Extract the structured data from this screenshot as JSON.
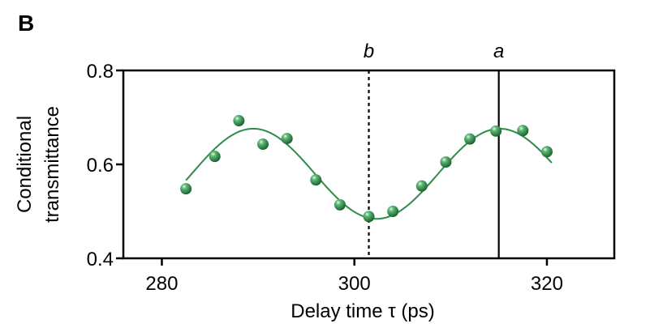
{
  "panel_label": "B",
  "chart_data": {
    "type": "scatter",
    "xlabel": "Delay time τ (ps)",
    "ylabel_lines": [
      "Conditional",
      "transmittance"
    ],
    "xlim": [
      276,
      327
    ],
    "ylim": [
      0.4,
      0.8
    ],
    "x_ticks": [
      280,
      300,
      320
    ],
    "y_ticks": [
      0.4,
      0.6,
      0.8
    ],
    "y_tick_labels": [
      "0.4",
      "0.6",
      "0.8"
    ],
    "grid": false,
    "series": [
      {
        "kind": "points",
        "color": "#2e8b4a",
        "x": [
          282.5,
          285.5,
          288,
          290.5,
          293,
          296,
          298.5,
          301.5,
          304,
          307,
          309.5,
          312,
          314.7,
          317.5,
          320
        ],
        "y": [
          0.548,
          0.617,
          0.693,
          0.643,
          0.655,
          0.567,
          0.514,
          0.489,
          0.5,
          0.554,
          0.605,
          0.654,
          0.671,
          0.672,
          0.627
        ]
      },
      {
        "kind": "fit",
        "color": "#2e8b4a",
        "function": "sine",
        "offset": 0.58,
        "amplitude": 0.096,
        "period": 25.6,
        "peak_x": 289.5,
        "x_range": [
          282.5,
          320.5
        ]
      }
    ],
    "markers": [
      {
        "label": "b",
        "x": 301.5,
        "style": "dotted"
      },
      {
        "label": "a",
        "x": 315,
        "style": "solid"
      }
    ]
  }
}
